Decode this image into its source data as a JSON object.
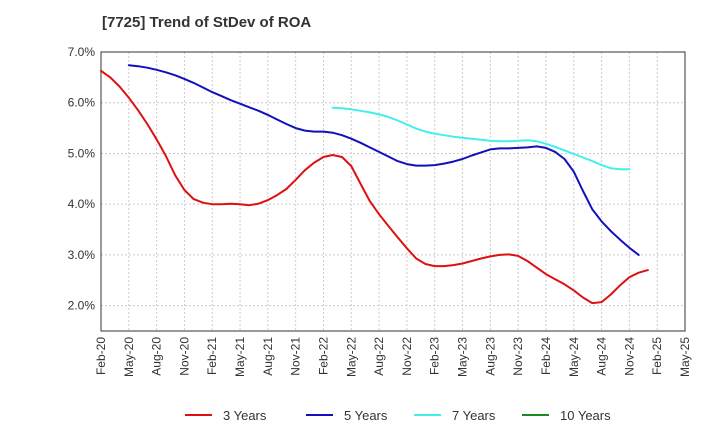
{
  "title": "[7725]  Trend of StDev of ROA",
  "chart_data": {
    "type": "line",
    "title": "[7725]  Trend of StDev of ROA",
    "xlabel": "",
    "ylabel": "",
    "ylim": [
      1.5,
      7.0
    ],
    "yticks": [
      2.0,
      3.0,
      4.0,
      5.0,
      6.0,
      7.0
    ],
    "ytick_labels": [
      "2.0%",
      "3.0%",
      "4.0%",
      "5.0%",
      "6.0%",
      "7.0%"
    ],
    "x_tick_labels": [
      "Feb-20",
      "May-20",
      "Aug-20",
      "Nov-20",
      "Feb-21",
      "May-21",
      "Aug-21",
      "Nov-21",
      "Feb-22",
      "May-22",
      "Aug-22",
      "Nov-22",
      "Feb-23",
      "May-23",
      "Aug-23",
      "Nov-23",
      "Feb-24",
      "May-24",
      "Aug-24",
      "Nov-24",
      "Feb-25",
      "May-25"
    ],
    "grid": true,
    "legend_position": "bottom",
    "series": [
      {
        "name": "3 Years",
        "color": "#dd1111",
        "values": [
          6.63,
          6.5,
          6.32,
          6.1,
          5.85,
          5.58,
          5.28,
          4.95,
          4.57,
          4.28,
          4.1,
          4.03,
          4.0,
          4.0,
          4.01,
          4.0,
          3.98,
          4.01,
          4.08,
          4.18,
          4.3,
          4.48,
          4.67,
          4.82,
          4.93,
          4.97,
          4.93,
          4.75,
          4.4,
          4.06,
          3.8,
          3.57,
          3.35,
          3.13,
          2.93,
          2.82,
          2.78,
          2.78,
          2.8,
          2.83,
          2.88,
          2.93,
          2.97,
          3.0,
          3.01,
          2.98,
          2.88,
          2.75,
          2.62,
          2.52,
          2.42,
          2.3,
          2.16,
          2.05,
          2.07,
          2.22,
          2.4,
          2.56,
          2.65,
          2.7
        ]
      },
      {
        "name": "5 Years",
        "color": "#1111bb",
        "values": [
          null,
          null,
          null,
          6.74,
          6.72,
          6.69,
          6.65,
          6.6,
          6.54,
          6.47,
          6.39,
          6.3,
          6.21,
          6.13,
          6.05,
          5.98,
          5.91,
          5.84,
          5.76,
          5.67,
          5.58,
          5.5,
          5.45,
          5.43,
          5.43,
          5.41,
          5.36,
          5.29,
          5.21,
          5.12,
          5.03,
          4.94,
          4.85,
          4.79,
          4.76,
          4.76,
          4.77,
          4.8,
          4.84,
          4.89,
          4.96,
          5.02,
          5.08,
          5.1,
          5.1,
          5.11,
          5.12,
          5.14,
          5.11,
          5.03,
          4.89,
          4.64,
          4.26,
          3.9,
          3.66,
          3.47,
          3.3,
          3.14,
          3.0
        ]
      },
      {
        "name": "7 Years",
        "color": "#44eeee",
        "values": [
          null,
          null,
          null,
          null,
          null,
          null,
          null,
          null,
          null,
          null,
          null,
          null,
          null,
          null,
          null,
          null,
          null,
          null,
          null,
          null,
          null,
          null,
          null,
          null,
          null,
          5.9,
          5.89,
          5.87,
          5.84,
          5.81,
          5.77,
          5.72,
          5.65,
          5.57,
          5.49,
          5.43,
          5.39,
          5.36,
          5.33,
          5.31,
          5.29,
          5.27,
          5.25,
          5.24,
          5.24,
          5.25,
          5.26,
          5.24,
          5.19,
          5.13,
          5.06,
          4.99,
          4.92,
          4.85,
          4.77,
          4.71,
          4.69,
          4.69
        ]
      },
      {
        "name": "10 Years",
        "color": "#228822",
        "values": []
      }
    ]
  }
}
